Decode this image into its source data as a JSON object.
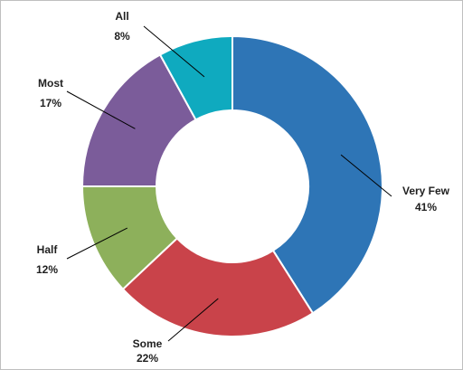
{
  "chart_data": {
    "type": "pie",
    "variant": "donut",
    "title": "",
    "start_angle_deg": 0,
    "direction": "clockwise",
    "slices": [
      {
        "label": "Very Few",
        "value": 41,
        "value_label": "41%",
        "color": "#2e75b6"
      },
      {
        "label": "Some",
        "value": 22,
        "value_label": "22%",
        "color": "#c9434a"
      },
      {
        "label": "Half",
        "value": 12,
        "value_label": "12%",
        "color": "#8db05b"
      },
      {
        "label": "Most",
        "value": 17,
        "value_label": "17%",
        "color": "#7b5c9a"
      },
      {
        "label": "All",
        "value": 8,
        "value_label": "8%",
        "color": "#0faabf"
      }
    ],
    "legend": "none"
  }
}
